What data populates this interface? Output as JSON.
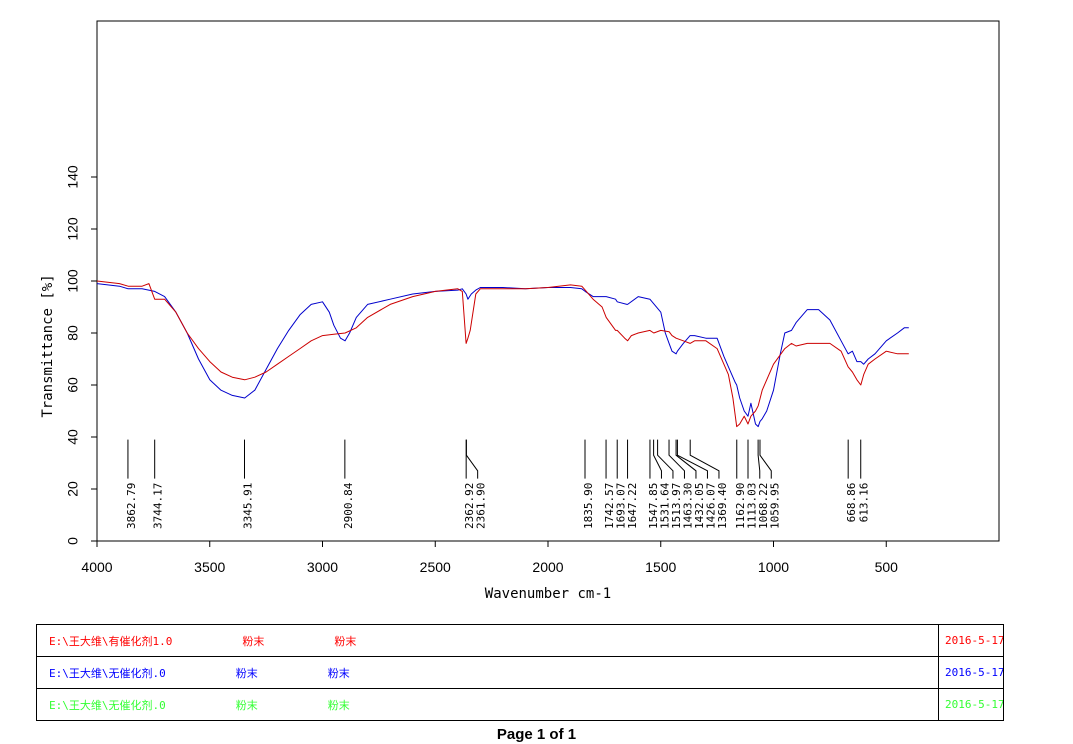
{
  "chart_data": {
    "type": "line",
    "xlabel": "Wavenumber cm-1",
    "ylabel": "Transmittance [%]",
    "xlim": [
      4000,
      0
    ],
    "ylim": [
      0,
      200
    ],
    "xticks": [
      4000,
      3500,
      3000,
      2500,
      2000,
      1500,
      1000,
      500
    ],
    "yticks": [
      0,
      20,
      40,
      60,
      80,
      100,
      120,
      140
    ],
    "series": [
      {
        "color": "#0000cc",
        "x": [
          4000,
          3900,
          3862,
          3800,
          3744,
          3700,
          3650,
          3600,
          3550,
          3500,
          3450,
          3400,
          3345,
          3300,
          3250,
          3200,
          3150,
          3100,
          3050,
          3000,
          2970,
          2950,
          2920,
          2900,
          2880,
          2850,
          2800,
          2700,
          2600,
          2500,
          2400,
          2380,
          2363,
          2355,
          2340,
          2320,
          2300,
          2200,
          2100,
          2000,
          1900,
          1850,
          1835,
          1800,
          1742,
          1700,
          1693,
          1650,
          1647,
          1600,
          1548,
          1500,
          1480,
          1463,
          1450,
          1432,
          1426,
          1400,
          1370,
          1350,
          1300,
          1250,
          1220,
          1200,
          1170,
          1163,
          1150,
          1130,
          1113,
          1100,
          1080,
          1068,
          1060,
          1050,
          1030,
          1000,
          970,
          950,
          920,
          900,
          850,
          800,
          750,
          700,
          669,
          650,
          630,
          613,
          600,
          580,
          550,
          500,
          450,
          420,
          400
        ],
        "y": [
          99,
          98,
          97,
          97,
          96,
          94,
          88,
          80,
          70,
          62,
          58,
          56,
          55,
          58,
          66,
          74,
          81,
          87,
          91,
          92,
          88,
          83,
          78,
          77,
          80,
          86,
          91,
          93,
          95,
          96,
          96.5,
          97,
          95,
          93,
          95,
          96.5,
          97.5,
          97.5,
          97,
          97.5,
          97.5,
          97,
          96,
          94,
          94,
          93,
          92,
          91,
          91,
          94,
          93,
          88,
          80,
          76,
          73,
          72,
          73,
          76,
          79,
          79,
          78,
          78,
          71,
          67,
          61,
          60,
          55,
          50,
          48,
          53,
          45,
          44,
          46,
          47,
          50,
          58,
          72,
          80,
          81,
          84,
          89,
          89,
          85,
          77,
          72,
          73,
          69,
          69,
          68,
          70,
          72,
          77,
          80,
          82,
          82
        ]
      },
      {
        "color": "#cc0000",
        "x": [
          4000,
          3900,
          3862,
          3800,
          3770,
          3744,
          3700,
          3650,
          3600,
          3550,
          3500,
          3450,
          3400,
          3345,
          3300,
          3250,
          3200,
          3150,
          3100,
          3050,
          3000,
          2950,
          2900,
          2850,
          2800,
          2700,
          2600,
          2500,
          2400,
          2380,
          2363,
          2355,
          2345,
          2320,
          2300,
          2200,
          2100,
          2000,
          1900,
          1850,
          1835,
          1800,
          1760,
          1742,
          1700,
          1693,
          1660,
          1647,
          1630,
          1600,
          1548,
          1531,
          1500,
          1463,
          1450,
          1432,
          1400,
          1370,
          1350,
          1300,
          1250,
          1200,
          1180,
          1163,
          1150,
          1130,
          1113,
          1100,
          1080,
          1068,
          1050,
          1000,
          950,
          920,
          900,
          850,
          800,
          750,
          700,
          669,
          650,
          630,
          613,
          600,
          580,
          550,
          500,
          450,
          420,
          400
        ],
        "y": [
          100,
          99,
          98,
          98,
          99,
          93,
          93,
          88,
          80,
          74,
          69,
          65,
          63,
          62,
          63,
          65,
          68,
          71,
          74,
          77,
          79,
          79.5,
          80,
          82,
          86,
          91,
          94,
          96,
          97,
          96,
          76,
          78,
          81,
          95,
          97,
          97,
          97,
          97.5,
          98.5,
          98,
          96.5,
          93,
          90,
          86,
          81,
          81,
          78,
          77,
          79,
          80,
          81,
          80,
          81,
          80.5,
          79,
          78,
          77,
          76,
          77,
          77,
          74,
          64,
          55,
          44,
          45,
          48,
          45,
          48,
          50,
          52,
          58,
          68,
          74,
          76,
          75,
          76,
          76,
          76,
          73,
          67,
          65,
          62,
          60,
          64,
          68,
          70,
          73,
          72,
          72,
          72
        ]
      }
    ],
    "peak_markers": [
      {
        "label": "3862.79",
        "x": 3862.79,
        "kink": false
      },
      {
        "label": "3744.17",
        "x": 3744.17,
        "kink": false
      },
      {
        "label": "3345.91",
        "x": 3345.91,
        "kink": false
      },
      {
        "label": "2900.84",
        "x": 2900.84,
        "kink": false
      },
      {
        "label": "2362.92",
        "x": 2362.92,
        "kink": true
      },
      {
        "label": "2361.90",
        "x": 2361.9,
        "kink": true
      },
      {
        "label": "1835.90",
        "x": 1835.9,
        "kink": false
      },
      {
        "label": "1742.57",
        "x": 1742.57,
        "kink": true
      },
      {
        "label": "1693.07",
        "x": 1693.07,
        "kink": true
      },
      {
        "label": "1647.22",
        "x": 1647.22,
        "kink": true
      },
      {
        "label": "1547.85",
        "x": 1547.85,
        "kink": true
      },
      {
        "label": "1531.64",
        "x": 1531.64,
        "kink": true
      },
      {
        "label": "1513.97",
        "x": 1513.97,
        "kink": true
      },
      {
        "label": "1463.30",
        "x": 1463.3,
        "kink": true
      },
      {
        "label": "1432.05",
        "x": 1432.05,
        "kink": true
      },
      {
        "label": "1426.07",
        "x": 1426.07,
        "kink": true
      },
      {
        "label": "1369.40",
        "x": 1369.4,
        "kink": true
      },
      {
        "label": "1162.90",
        "x": 1162.9,
        "kink": true
      },
      {
        "label": "1113.03",
        "x": 1113.03,
        "kink": true
      },
      {
        "label": "1068.22",
        "x": 1068.22,
        "kink": true
      },
      {
        "label": "1059.95",
        "x": 1059.95,
        "kink": true
      },
      {
        "label": "668.86",
        "x": 668.86,
        "kink": false
      },
      {
        "label": "613.16",
        "x": 613.16,
        "kink": true
      }
    ]
  },
  "legend": [
    {
      "path": "E:\\王大维\\有催化剂1.0",
      "state1": "粉末",
      "state2": "粉末",
      "date": "2016-5-17",
      "color": "#ff0000"
    },
    {
      "path": "E:\\王大维\\无催化剂.0",
      "state1": "粉末",
      "state2": "粉末",
      "date": "2016-5-17",
      "color": "#0000ff"
    },
    {
      "path": "E:\\王大维\\无催化剂.0",
      "state1": "粉末",
      "state2": "粉末",
      "date": "2016-5-17",
      "color": "#33ff33"
    }
  ],
  "footer": {
    "page": "Page 1 of 1"
  }
}
